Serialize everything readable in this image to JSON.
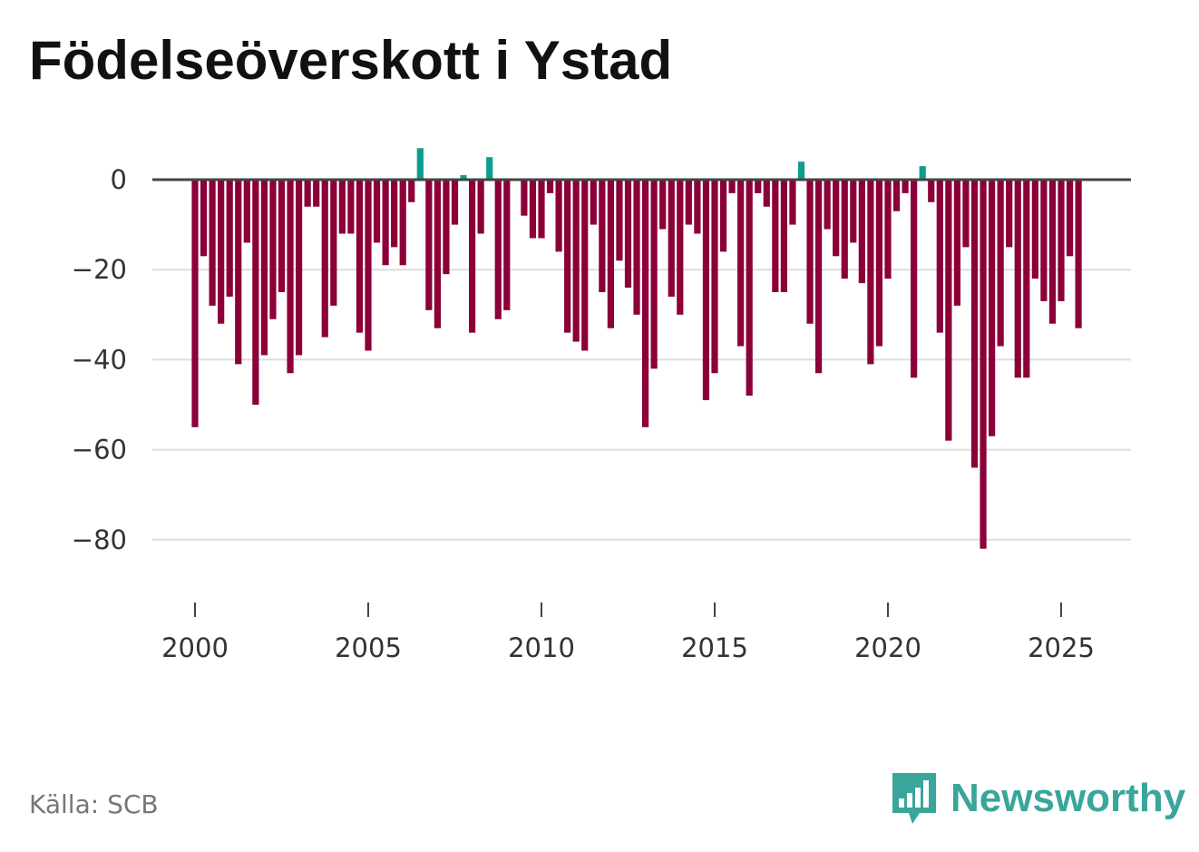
{
  "title": "Födelseöverskott i Ystad",
  "source": "Källa: SCB",
  "brand": {
    "name": "Newsworthy",
    "icon": "newsworthy-logo-icon"
  },
  "colors": {
    "positive": "#0e9e8e",
    "negative": "#8b0038",
    "baseline": "#444444",
    "grid": "#dddddd",
    "brand": "#3aa59a"
  },
  "chart_data": {
    "type": "bar",
    "title": "Födelseöverskott i Ystad",
    "xlabel": "",
    "ylabel": "",
    "ylim": [
      -92,
      10
    ],
    "xlim": [
      1999.5,
      2027.0
    ],
    "y_ticks": [
      0,
      -20,
      -40,
      -60,
      -80
    ],
    "y_tick_labels": [
      "0",
      "−20",
      "−40",
      "−60",
      "−80"
    ],
    "x_ticks": [
      2000,
      2005,
      2010,
      2015,
      2020,
      2025
    ],
    "x_tick_labels": [
      "2000",
      "2005",
      "2010",
      "2015",
      "2020",
      "2025"
    ],
    "start": 2000.0,
    "step": 0.25,
    "values": [
      -55,
      -17,
      -28,
      -32,
      -26,
      -41,
      -14,
      -50,
      -39,
      -31,
      -25,
      -43,
      -39,
      -6,
      -6,
      -35,
      -28,
      -12,
      -12,
      -34,
      -38,
      -14,
      -19,
      -15,
      -19,
      -5,
      7,
      -29,
      -33,
      -21,
      -10,
      1,
      -34,
      -12,
      5,
      -31,
      -29,
      0,
      -8,
      -13,
      -13,
      -3,
      -16,
      -34,
      -36,
      -38,
      -10,
      -25,
      -33,
      -18,
      -24,
      -30,
      -55,
      -42,
      -11,
      -26,
      -30,
      -10,
      -12,
      -49,
      -43,
      -16,
      -3,
      -37,
      -48,
      -3,
      -6,
      -25,
      -25,
      -10,
      4,
      -32,
      -43,
      -11,
      -17,
      -22,
      -14,
      -23,
      -41,
      -37,
      -22,
      -7,
      -3,
      -44,
      3,
      -5,
      -34,
      -58,
      -28,
      -15,
      -64,
      -82,
      -57,
      -37,
      -15,
      -44,
      -44,
      -22,
      -27,
      -32,
      -27,
      -17,
      -33
    ]
  }
}
